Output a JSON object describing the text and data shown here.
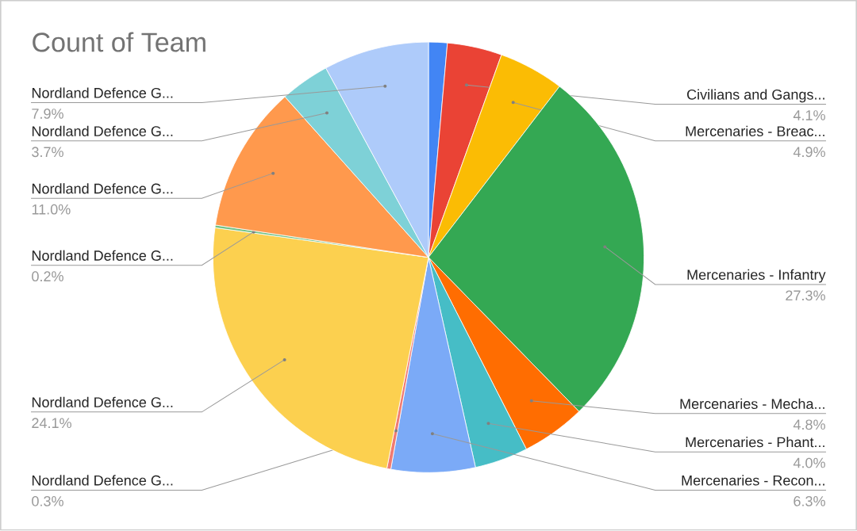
{
  "chart_data": {
    "type": "pie",
    "title": "Count of Team",
    "categories": [
      null,
      "Civilians and Gangs...",
      "Mercenaries - Breac...",
      "Mercenaries - Infantry",
      "Mercenaries - Mecha...",
      "Mercenaries - Phant...",
      "Mercenaries - Recon...",
      "Nordland Defence G...",
      "Nordland Defence G...",
      "Nordland Defence G...",
      "Nordland Defence G...",
      "Nordland Defence G...",
      "Nordland Defence G..."
    ],
    "values": [
      1.4,
      4.1,
      4.9,
      27.3,
      4.8,
      4.0,
      6.3,
      0.3,
      24.1,
      0.2,
      11.0,
      3.7,
      7.9
    ],
    "value_labels": [
      null,
      "4.1%",
      "4.9%",
      "27.3%",
      "4.8%",
      "4.0%",
      "6.3%",
      "0.3%",
      "24.1%",
      "0.2%",
      "11.0%",
      "3.7%",
      "7.9%"
    ],
    "colors": [
      "#4285f4",
      "#ea4335",
      "#fbbc04",
      "#34a853",
      "#ff6d01",
      "#46bdc6",
      "#7baaf7",
      "#f07b72",
      "#fcd04f",
      "#71c287",
      "#ff994d",
      "#7ed1d7",
      "#aecbfa"
    ]
  }
}
